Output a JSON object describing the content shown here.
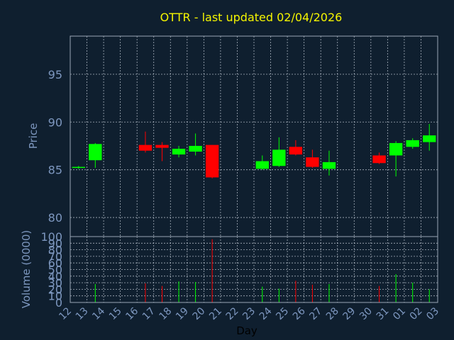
{
  "chart_data": {
    "type": "candlestick",
    "title": "OTTR - last updated 02/04/2026",
    "xlabel": "Day",
    "price_ylabel": "Price",
    "volume_ylabel": "Volume (0000)",
    "price_ylim": [
      78,
      99
    ],
    "price_yticks": [
      80,
      85,
      90,
      95
    ],
    "volume_ylim": [
      0,
      100
    ],
    "volume_yticks": [
      0,
      10,
      20,
      30,
      40,
      50,
      60,
      70,
      80,
      90,
      100
    ],
    "x_tick_labels": [
      "12",
      "13",
      "14",
      "15",
      "16",
      "17",
      "18",
      "19",
      "20",
      "21",
      "22",
      "23",
      "24",
      "25",
      "26",
      "27",
      "28",
      "29",
      "30",
      "31",
      "01",
      "02",
      "03"
    ],
    "grid": true,
    "colors": {
      "up": "#00ff00",
      "down": "#ff0000",
      "title": "#f5f500",
      "axis": "#7d97bf",
      "background": "#0f1f2f"
    },
    "candles": [
      {
        "x": 0,
        "open": 85.3,
        "high": 85.4,
        "low": 85.1,
        "close": 85.3,
        "volume": 0
      },
      {
        "x": 1,
        "open": 86.0,
        "high": 87.8,
        "low": 85.2,
        "close": 87.7,
        "volume": 28
      },
      {
        "x": 4,
        "open": 87.6,
        "high": 89.0,
        "low": 86.8,
        "close": 87.0,
        "volume": 29
      },
      {
        "x": 5,
        "open": 87.6,
        "high": 87.9,
        "low": 85.9,
        "close": 87.3,
        "volume": 25
      },
      {
        "x": 6,
        "open": 86.6,
        "high": 87.5,
        "low": 86.3,
        "close": 87.2,
        "volume": 32
      },
      {
        "x": 7,
        "open": 86.9,
        "high": 88.8,
        "low": 86.5,
        "close": 87.5,
        "volume": 31
      },
      {
        "x": 8,
        "open": 87.6,
        "high": 87.6,
        "low": 84.1,
        "close": 84.2,
        "volume": 96
      },
      {
        "x": 11,
        "open": 85.1,
        "high": 86.5,
        "low": 85.0,
        "close": 85.9,
        "volume": 24
      },
      {
        "x": 12,
        "open": 85.4,
        "high": 88.4,
        "low": 85.3,
        "close": 87.1,
        "volume": 21
      },
      {
        "x": 13,
        "open": 87.4,
        "high": 88.1,
        "low": 86.5,
        "close": 86.6,
        "volume": 33
      },
      {
        "x": 14,
        "open": 86.3,
        "high": 87.1,
        "low": 85.2,
        "close": 85.3,
        "volume": 27
      },
      {
        "x": 15,
        "open": 85.1,
        "high": 87.0,
        "low": 84.4,
        "close": 85.8,
        "volume": 28
      },
      {
        "x": 18,
        "open": 86.5,
        "high": 86.8,
        "low": 85.6,
        "close": 85.7,
        "volume": 25
      },
      {
        "x": 19,
        "open": 86.5,
        "high": 88.0,
        "low": 84.3,
        "close": 87.8,
        "volume": 43
      },
      {
        "x": 20,
        "open": 87.4,
        "high": 88.3,
        "low": 87.2,
        "close": 88.1,
        "volume": 30
      },
      {
        "x": 21,
        "open": 87.9,
        "high": 89.8,
        "low": 87.0,
        "close": 88.6,
        "volume": 20
      }
    ]
  }
}
